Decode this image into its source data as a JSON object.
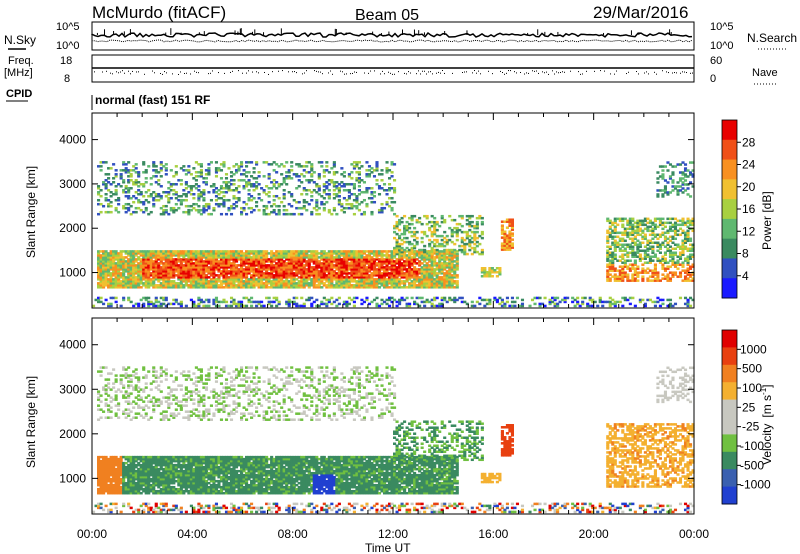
{
  "header": {
    "title": "McMurdo (fitACF)",
    "beam": "Beam 05",
    "date": "29/Mar/2016"
  },
  "top_panels": {
    "nsky_label": "N.Sky",
    "nsearch_label": "N.Search",
    "noise_ticks_left": [
      "10^5",
      "10^0"
    ],
    "noise_ticks_right": [
      "10^5",
      "10^0"
    ],
    "freq_label_1": "Freq.",
    "freq_label_2": "[MHz]",
    "freq_ticks": [
      "18",
      "8"
    ],
    "nave_label": "Nave",
    "nave_ticks": [
      "60",
      "0"
    ],
    "cpid_label": "CPID",
    "cpid_text": "normal (fast) 151 RF"
  },
  "colors": {
    "power_scale": [
      "#1a1aff",
      "#3050c0",
      "#3a8a60",
      "#5fb870",
      "#a8d040",
      "#f0c030",
      "#f89020",
      "#f05018",
      "#e80000"
    ],
    "velocity_scale": [
      "#2040d0",
      "#3a60b0",
      "#3a8a60",
      "#70c040",
      "#c8c8c0",
      "#c8c8c0",
      "#f4b030",
      "#f08020",
      "#e84010",
      "#e00000"
    ]
  },
  "chart_data": [
    {
      "type": "heatmap",
      "name": "power",
      "ylabel": "Slant Range [km]",
      "yticks": [
        "1000",
        "2000",
        "3000",
        "4000"
      ],
      "xticks": [
        "00:00",
        "04:00",
        "08:00",
        "12:00",
        "16:00",
        "20:00",
        "00:00"
      ],
      "xlim": [
        0,
        24
      ],
      "ylim": [
        200,
        4600
      ],
      "colorbar_label": "Power [dB]",
      "colorbar_ticks": [
        "28",
        "24",
        "20",
        "16",
        "12",
        "8",
        "4"
      ],
      "range": [
        0,
        30
      ]
    },
    {
      "type": "heatmap",
      "name": "velocity",
      "ylabel": "Slant Range [km]",
      "yticks": [
        "1000",
        "2000",
        "3000",
        "4000"
      ],
      "xticks": [
        "00:00",
        "04:00",
        "08:00",
        "12:00",
        "16:00",
        "20:00",
        "00:00"
      ],
      "xlim": [
        0,
        24
      ],
      "ylim": [
        200,
        4600
      ],
      "xlabel": "Time UT",
      "colorbar_label_1": "Velocity",
      "colorbar_label_2": "[m s",
      "colorbar_label_sup": "-1",
      "colorbar_label_3": "]",
      "colorbar_ticks": [
        "1000",
        "500",
        "100",
        "25",
        "-25",
        "-100",
        "-500",
        "-1000"
      ],
      "range": [
        -1000,
        1000
      ]
    }
  ]
}
